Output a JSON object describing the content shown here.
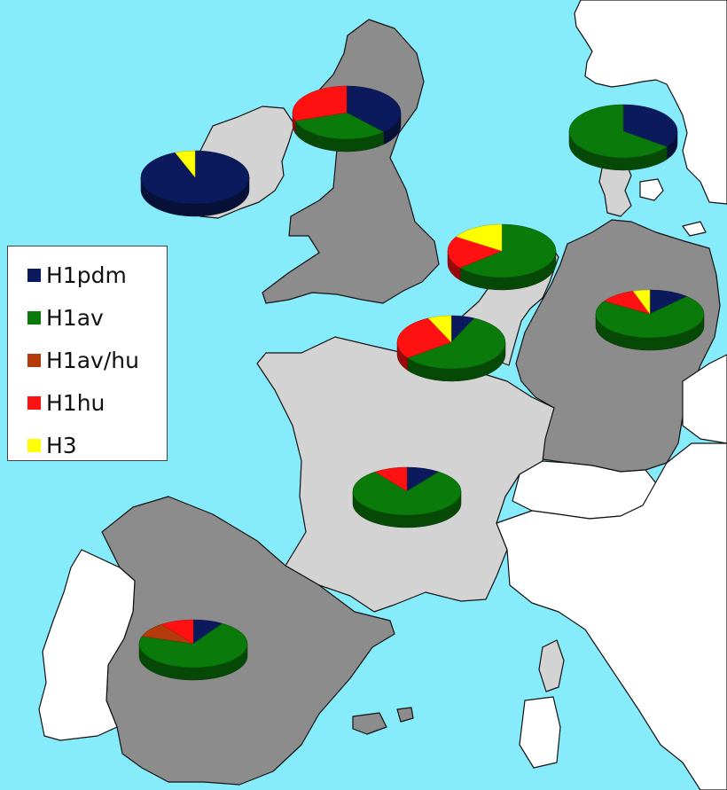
{
  "legend": {
    "items": [
      {
        "label": "H1pdm",
        "color": "#0b1a5c"
      },
      {
        "label": "H1av",
        "color": "#0a7a0a"
      },
      {
        "label": "H1av/hu",
        "color": "#b33a0a"
      },
      {
        "label": "H1hu",
        "color": "#ff1111"
      },
      {
        "label": "H3",
        "color": "#ffff00"
      }
    ]
  },
  "colors": {
    "sea": "#86ecfb",
    "land_dark": "#8c8c8c",
    "land_light": "#d3d3d3",
    "land_white": "#ffffff"
  },
  "chart_data": {
    "type": "pie",
    "series_order": [
      "H1pdm",
      "H1av",
      "H1av/hu",
      "H1hu",
      "H3"
    ],
    "pies": [
      {
        "region": "Ireland",
        "values": [
          94,
          0,
          0,
          0,
          6
        ]
      },
      {
        "region": "Scotland / Northern UK",
        "values": [
          38,
          32,
          0,
          30,
          0
        ]
      },
      {
        "region": "Denmark",
        "values": [
          35,
          65,
          0,
          0,
          0
        ]
      },
      {
        "region": "Netherlands",
        "values": [
          0,
          64,
          0,
          20,
          16
        ]
      },
      {
        "region": "Belgium",
        "values": [
          7,
          58,
          0,
          28,
          7
        ]
      },
      {
        "region": "Germany",
        "values": [
          12,
          72,
          0,
          11,
          5
        ]
      },
      {
        "region": "France",
        "values": [
          10,
          80,
          0,
          10,
          0
        ]
      },
      {
        "region": "Spain",
        "values": [
          9,
          71,
          10,
          10,
          0
        ]
      }
    ]
  }
}
